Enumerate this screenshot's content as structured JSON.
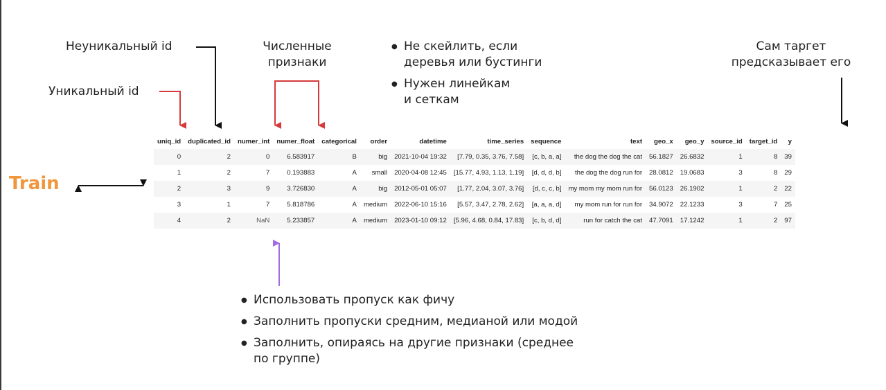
{
  "annotations": {
    "nonunique_id": "Неуникальный id",
    "unique_id": "Уникальный id",
    "numeric_line1": "Численные",
    "numeric_line2": "признаки",
    "target_line1": "Сам таргет",
    "target_line2": "предсказывает его",
    "scaling_bullets": [
      {
        "line1": "Не скейлить, если",
        "line2": "деревья или бустинги"
      },
      {
        "line1": "Нужен линейкам",
        "line2": "и сеткам"
      }
    ],
    "missing_bullets": [
      {
        "line1": "Использовать пропуск как фичу",
        "line2": ""
      },
      {
        "line1": "Заполнить пропуски средним, медианой или модой",
        "line2": ""
      },
      {
        "line1": "Заполнить, опираясь на другие признаки (среднее",
        "line2": "по группе)"
      }
    ]
  },
  "train_label": "Train",
  "colors": {
    "red_arrow": "#d63a3a",
    "purple_arrow": "#a36be0",
    "black_arrow": "#111111",
    "train_orange": "#f0963c"
  },
  "table": {
    "columns": [
      "uniq_id",
      "duplicated_id",
      "numer_int",
      "numer_float",
      "categorical",
      "order",
      "datetime",
      "time_series",
      "sequence",
      "text",
      "geo_x",
      "geo_y",
      "source_id",
      "target_id",
      "y"
    ],
    "rows": [
      [
        "0",
        "2",
        "0",
        "6.583917",
        "B",
        "big",
        "2021-10-04 19:32",
        "[7.79, 0.35, 3.76, 7.58]",
        "[c, b, a, a]",
        "the dog the dog the cat",
        "56.1827",
        "26.6832",
        "1",
        "8",
        "39"
      ],
      [
        "1",
        "2",
        "7",
        "0.193883",
        "A",
        "small",
        "2020-04-08 12:45",
        "[15.77, 4.93, 1.13, 1.19]",
        "[d, d, d, b]",
        "the dog the dog run for",
        "28.0812",
        "19.0683",
        "3",
        "8",
        "29"
      ],
      [
        "2",
        "3",
        "9",
        "3.726830",
        "A",
        "big",
        "2012-05-01 05:07",
        "[1.77, 2.04, 3.07, 3.76]",
        "[d, c, c, b]",
        "my mom my mom run for",
        "56.0123",
        "26.1902",
        "1",
        "2",
        "22"
      ],
      [
        "3",
        "1",
        "7",
        "5.818786",
        "A",
        "medium",
        "2022-06-10 15:16",
        "[5.57, 3.47, 2.78, 2.62]",
        "[a, a, a, d]",
        "my mom run for run for",
        "34.9072",
        "22.1233",
        "3",
        "7",
        "25"
      ],
      [
        "4",
        "2",
        "NaN",
        "5.233857",
        "A",
        "medium",
        "2023-01-10 09:12",
        "[5.96, 4.68, 0.84, 17.83]",
        "[c, b, d, d]",
        "run for catch the cat",
        "47.7091",
        "17.1242",
        "1",
        "2",
        "97"
      ]
    ]
  }
}
